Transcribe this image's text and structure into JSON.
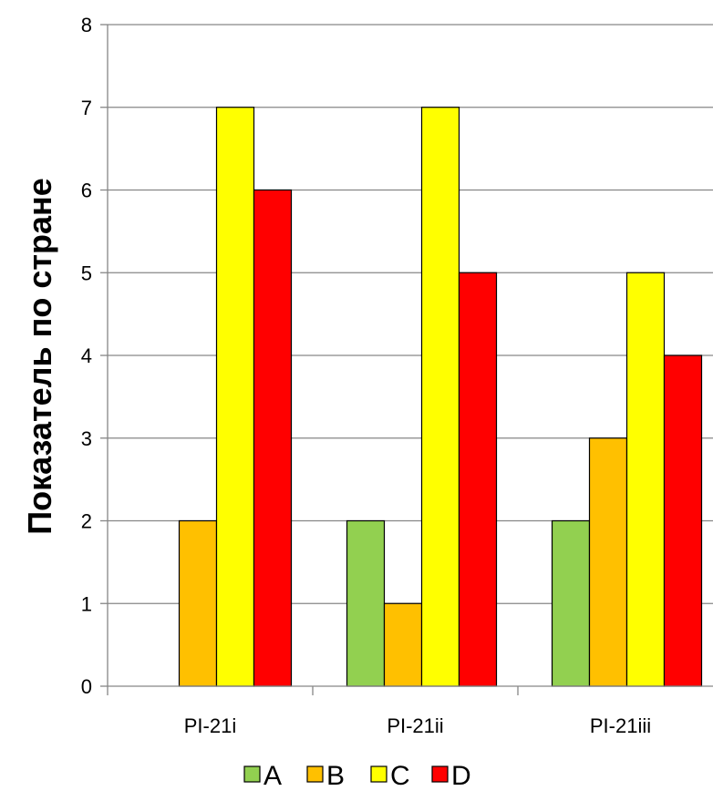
{
  "chart_data": {
    "type": "bar",
    "categories": [
      "PI-21i",
      "PI-21ii",
      "PI-21iii"
    ],
    "series": [
      {
        "name": "A",
        "color": "#92d050",
        "values": [
          0,
          2,
          2
        ]
      },
      {
        "name": "B",
        "color": "#ffc000",
        "values": [
          2,
          1,
          3
        ]
      },
      {
        "name": "C",
        "color": "#ffff00",
        "values": [
          7,
          7,
          5
        ]
      },
      {
        "name": "D",
        "color": "#ff0000",
        "values": [
          6,
          5,
          4
        ]
      }
    ],
    "title": "",
    "xlabel": "",
    "ylabel": "Показатель по стране",
    "ylim": [
      0,
      8
    ],
    "yticks": [
      0,
      1,
      2,
      3,
      4,
      5,
      6,
      7,
      8
    ],
    "grid": true,
    "legend_position": "bottom"
  }
}
